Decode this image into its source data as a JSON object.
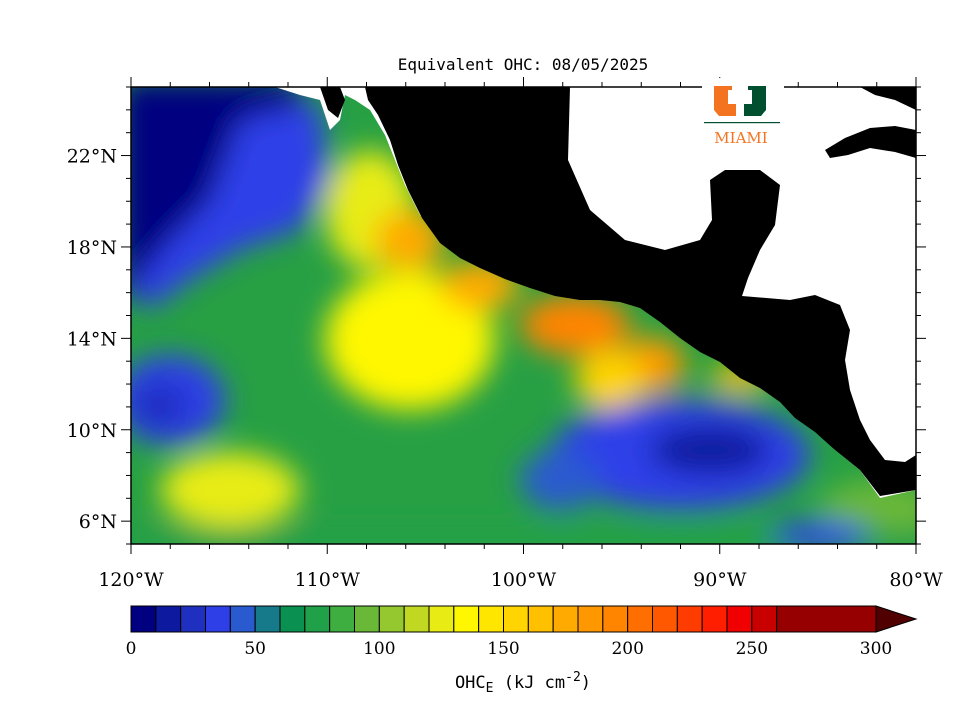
{
  "title": "Equivalent OHC: 08/05/2025",
  "map": {
    "lon_range": [
      -120,
      -80
    ],
    "lat_range": [
      5,
      25
    ],
    "lon_ticks": [
      {
        "value": -120,
        "label": "120°W"
      },
      {
        "value": -110,
        "label": "110°W"
      },
      {
        "value": -100,
        "label": "100°W"
      },
      {
        "value": -90,
        "label": "90°W"
      },
      {
        "value": -80,
        "label": "80°W"
      }
    ],
    "lat_ticks": [
      {
        "value": 6,
        "label": "6°N"
      },
      {
        "value": 10,
        "label": "10°N"
      },
      {
        "value": 14,
        "label": "14°N"
      },
      {
        "value": 18,
        "label": "18°N"
      },
      {
        "value": 22,
        "label": "22°N"
      }
    ],
    "land_color": "#000000",
    "ocean_regions": [
      {
        "name": "open-ocean-northwest",
        "category": "low"
      },
      {
        "name": "coastal-warm-band",
        "category": "high"
      },
      {
        "name": "south-central-cool-pool",
        "category": "low"
      }
    ]
  },
  "colorbar": {
    "min": 0,
    "max": 300,
    "step": 10,
    "labels": [
      "0",
      "50",
      "100",
      "150",
      "200",
      "250",
      "300"
    ],
    "colors": [
      "#010080",
      "#0d1aa0",
      "#1f2fc0",
      "#2f3fe8",
      "#2a5ad0",
      "#167a8a",
      "#0a9050",
      "#20a048",
      "#3fae40",
      "#6ab838",
      "#95c82e",
      "#c0d822",
      "#e8ec14",
      "#fff700",
      "#ffe600",
      "#ffd400",
      "#ffc000",
      "#ffaa00",
      "#ff9800",
      "#ff8400",
      "#ff6e00",
      "#ff5800",
      "#ff3c00",
      "#ff1e00",
      "#f00000",
      "#c80000",
      "#960000"
    ],
    "overflow_color": "#500000"
  },
  "unit_label": {
    "prefix": "OHC",
    "subscript": "E",
    "suffix": " (kJ cm",
    "superscript": "-2",
    "close": ")"
  },
  "logo": {
    "text": "MIAMI",
    "orange": "#f47321",
    "green": "#005030"
  }
}
